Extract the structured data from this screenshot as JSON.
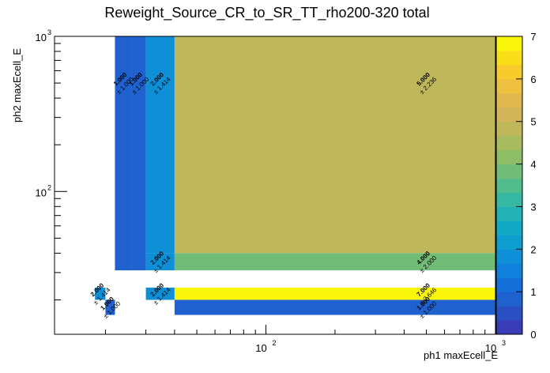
{
  "chart_data": {
    "type": "heatmap",
    "title": "Reweight_Source_CR_to_SR_TT_rho200-320 total",
    "xlabel": "ph1 maxEcell_E",
    "ylabel": "ph2 maxEcell_E",
    "xscale": "log",
    "yscale": "log",
    "xlim": [
      12,
      1000
    ],
    "ylim": [
      12,
      1000
    ],
    "zlim": [
      0,
      7
    ],
    "x_ticks": [
      {
        "value": 100,
        "base": "10",
        "exp": "2"
      },
      {
        "value": 1000,
        "base": "10",
        "exp": "3"
      }
    ],
    "y_ticks": [
      {
        "value": 100,
        "base": "10",
        "exp": "2"
      },
      {
        "value": 1000,
        "base": "10",
        "exp": "3"
      }
    ],
    "z_ticks": [
      "0",
      "1",
      "2",
      "3",
      "4",
      "5",
      "6",
      "7"
    ],
    "palette": [
      "#3a3bb6",
      "#2b4fc2",
      "#1f61cf",
      "#1670d9",
      "#0f80db",
      "#0f8fd6",
      "#0f9dcf",
      "#12a9c4",
      "#22b2b6",
      "#37b8a2",
      "#53bc8c",
      "#71bd78",
      "#8ebd68",
      "#a8bb5f",
      "#bfb85a",
      "#d1b558",
      "#e0b94e",
      "#edc13f",
      "#f6cb2b",
      "#f9de17",
      "#f9f60c"
    ],
    "cells": [
      {
        "x0": 22,
        "x1": 26,
        "y0": 31,
        "y1": 1000,
        "value": 1.0,
        "content": "1.000",
        "error": "± 1.000"
      },
      {
        "x0": 26,
        "x1": 30,
        "y0": 31,
        "y1": 1000,
        "value": 1.0,
        "content": "1.000",
        "error": "± 1.000"
      },
      {
        "x0": 30,
        "x1": 40,
        "y0": 40,
        "y1": 1000,
        "value": 2.0,
        "content": "2.000",
        "error": "± 1.414"
      },
      {
        "x0": 40,
        "x1": 1000,
        "y0": 40,
        "y1": 1000,
        "value": 5.0,
        "content": "5.000",
        "error": "± 2.236"
      },
      {
        "x0": 30,
        "x1": 40,
        "y0": 31,
        "y1": 40,
        "value": 2.0,
        "content": "2.000",
        "error": "± 1.414"
      },
      {
        "x0": 40,
        "x1": 1000,
        "y0": 31,
        "y1": 40,
        "value": 4.0,
        "content": "4.000",
        "error": "± 2.000"
      },
      {
        "x0": 30,
        "x1": 40,
        "y0": 20,
        "y1": 24,
        "value": 2.0,
        "content": "2.000",
        "error": "± 1.414"
      },
      {
        "x0": 40,
        "x1": 1000,
        "y0": 20,
        "y1": 24,
        "value": 7.0,
        "content": "7.000",
        "error": "± 2.646"
      },
      {
        "x0": 40,
        "x1": 1000,
        "y0": 16,
        "y1": 20,
        "value": 1.0,
        "content": "1.000",
        "error": "± 1.000"
      },
      {
        "x0": 18,
        "x1": 20,
        "y0": 20,
        "y1": 24,
        "value": 2.0,
        "content": "2.000",
        "error": "± 1.414"
      },
      {
        "x0": 20,
        "x1": 22,
        "y0": 16,
        "y1": 20,
        "value": 1.0,
        "content": "1.000",
        "error": "± 1.000"
      }
    ]
  }
}
